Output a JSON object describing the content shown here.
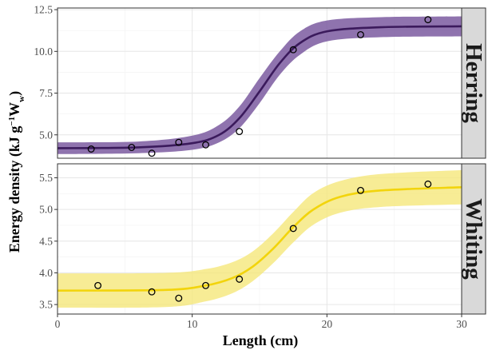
{
  "chart_data": {
    "type": "scatter",
    "xlabel": "Length (cm)",
    "ylabel": {
      "main": "Energy density (kJ g",
      "sup": "−1",
      "tail": "W",
      "sub": "w",
      "close": ")"
    },
    "xlim": [
      0,
      30
    ],
    "xticks": [
      0,
      10,
      20,
      30
    ],
    "xtick_labels": [
      "0",
      "10",
      "20",
      "30"
    ],
    "grid": true,
    "panels": [
      {
        "strip": "Herring",
        "ylim": [
          3.6,
          12.6
        ],
        "yticks": [
          5.0,
          7.5,
          10.0,
          12.5
        ],
        "ytick_labels": [
          "5.0",
          "7.5",
          "10.0",
          "12.5"
        ],
        "line_color": "#3b1a5c",
        "band_color": "#7b5aa0",
        "points": [
          {
            "x": 2.5,
            "y": 4.15
          },
          {
            "x": 5.5,
            "y": 4.25
          },
          {
            "x": 7.0,
            "y": 3.9
          },
          {
            "x": 9.0,
            "y": 4.55
          },
          {
            "x": 11.0,
            "y": 4.4
          },
          {
            "x": 13.5,
            "y": 5.2
          },
          {
            "x": 17.5,
            "y": 10.1
          },
          {
            "x": 22.5,
            "y": 11.0
          },
          {
            "x": 27.5,
            "y": 11.9
          }
        ],
        "fit": {
          "x": [
            0,
            6,
            10,
            12,
            13.5,
            15,
            16.5,
            18,
            20,
            24,
            30
          ],
          "y": [
            4.2,
            4.25,
            4.5,
            5.0,
            6.0,
            7.6,
            9.3,
            10.5,
            11.2,
            11.45,
            11.5
          ],
          "lower": [
            3.85,
            3.9,
            4.1,
            4.55,
            5.4,
            6.9,
            8.6,
            9.8,
            10.6,
            10.85,
            10.9
          ],
          "upper": [
            4.55,
            4.6,
            4.95,
            5.6,
            6.7,
            8.4,
            10.0,
            11.2,
            11.85,
            12.05,
            12.1
          ]
        }
      },
      {
        "strip": "Whiting",
        "ylim": [
          3.35,
          5.72
        ],
        "yticks": [
          3.5,
          4.0,
          4.5,
          5.0,
          5.5
        ],
        "ytick_labels": [
          "3.5",
          "4.0",
          "4.5",
          "5.0",
          "5.5"
        ],
        "line_color": "#f2d40c",
        "band_color": "#f5e77a",
        "points": [
          {
            "x": 3.0,
            "y": 3.8
          },
          {
            "x": 7.0,
            "y": 3.7
          },
          {
            "x": 9.0,
            "y": 3.6
          },
          {
            "x": 11.0,
            "y": 3.8
          },
          {
            "x": 13.5,
            "y": 3.9
          },
          {
            "x": 17.5,
            "y": 4.7
          },
          {
            "x": 22.5,
            "y": 5.3
          },
          {
            "x": 27.5,
            "y": 5.4
          }
        ],
        "fit": {
          "x": [
            0,
            8,
            11,
            13,
            14.5,
            16,
            17.5,
            19,
            21,
            24,
            30
          ],
          "y": [
            3.72,
            3.73,
            3.8,
            3.92,
            4.1,
            4.38,
            4.72,
            5.0,
            5.2,
            5.3,
            5.35
          ],
          "lower": [
            3.45,
            3.46,
            3.55,
            3.68,
            3.87,
            4.15,
            4.48,
            4.76,
            4.95,
            5.04,
            5.08
          ],
          "upper": [
            3.99,
            4.0,
            4.06,
            4.17,
            4.34,
            4.62,
            4.96,
            5.26,
            5.45,
            5.56,
            5.62
          ]
        }
      }
    ]
  }
}
